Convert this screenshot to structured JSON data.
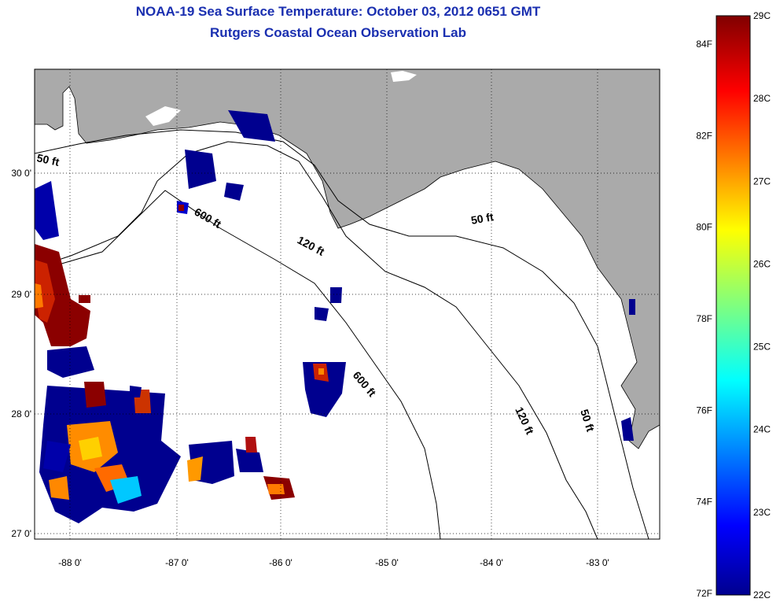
{
  "header": {
    "title": "NOAA-19 Sea Surface Temperature:  October 03, 2012 0651 GMT",
    "subtitle": "Rutgers Coastal Ocean Observation Lab"
  },
  "map": {
    "lon_labels": [
      "-88 0'",
      "-87 0'",
      "-86 0'",
      "-85 0'",
      "-84 0'",
      "-83 0'"
    ],
    "lat_labels": [
      "30 0'",
      "29 0'",
      "28 0'",
      "27 0'"
    ],
    "contour_labels": [
      "50 ft",
      "600 ft",
      "120 ft",
      "50 ft",
      "600 ft",
      "120 ft",
      "50 ft"
    ],
    "land_color": "#aaaaaa"
  },
  "colorbar": {
    "celsius": [
      "29C",
      "28C",
      "27C",
      "26C",
      "25C",
      "24C",
      "23C",
      "22C"
    ],
    "fahrenheit": [
      "84F",
      "82F",
      "80F",
      "78F",
      "76F",
      "74F",
      "72F"
    ]
  }
}
